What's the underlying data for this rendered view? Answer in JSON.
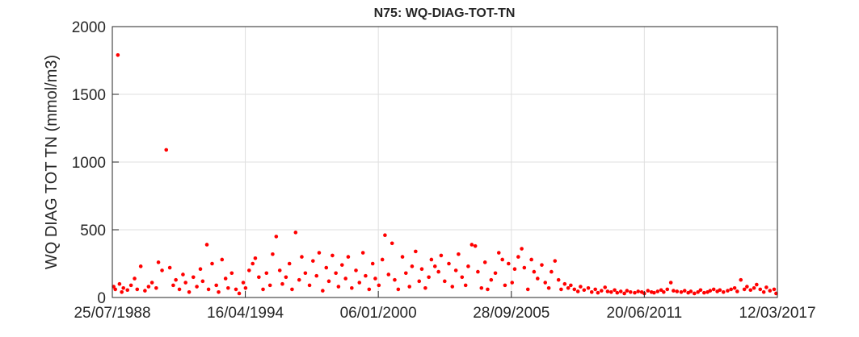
{
  "chart_data": {
    "type": "scatter",
    "title": "N75: WQ-DIAG-TOT-TN",
    "y_label": "WQ DIAG TOT TN (mmol/m3)",
    "xlim": [
      "25/07/1988",
      "12/03/2017"
    ],
    "xticks": [
      "25/07/1988",
      "16/04/1994",
      "06/01/2000",
      "28/09/2005",
      "20/06/2011",
      "12/03/2017"
    ],
    "ylim": [
      0,
      2000
    ],
    "yticks": [
      0,
      500,
      1000,
      1500,
      2000
    ],
    "grid": true,
    "series": [
      {
        "color": "#ff0000",
        "x": [
          "15/08/1988",
          "10/09/1988",
          "20/10/1988",
          "15/11/1988",
          "20/12/1988",
          "15/01/1989",
          "20/03/1989",
          "15/05/1989",
          "10/07/1989",
          "20/08/1989",
          "15/10/1989",
          "20/12/1989",
          "15/02/1990",
          "10/04/1990",
          "15/06/1990",
          "20/07/1990",
          "15/09/1990",
          "20/11/1990",
          "15/01/1991",
          "10/03/1991",
          "20/04/1991",
          "15/06/1991",
          "10/08/1991",
          "20/09/1991",
          "15/11/1991",
          "20/01/1992",
          "15/03/1992",
          "10/05/1992",
          "15/06/1992",
          "20/08/1992",
          "15/09/1992",
          "10/11/1992",
          "15/01/1993",
          "20/02/1993",
          "15/04/1993",
          "10/06/1993",
          "20/07/1993",
          "15/09/1993",
          "20/11/1993",
          "10/01/1994",
          "15/03/1994",
          "20/04/1994",
          "15/06/1994",
          "10/08/1994",
          "20/09/1994",
          "15/11/1994",
          "20/01/1995",
          "15/03/1995",
          "10/05/1995",
          "20/06/1995",
          "15/08/1995",
          "10/10/1995",
          "20/11/1995",
          "15/01/1996",
          "10/03/1996",
          "20/04/1996",
          "15/06/1996",
          "10/08/1996",
          "20/09/1996",
          "15/11/1996",
          "20/01/1997",
          "15/03/1997",
          "10/05/1997",
          "20/06/1997",
          "15/08/1997",
          "10/10/1997",
          "20/11/1997",
          "15/01/1998",
          "10/03/1998",
          "20/04/1998",
          "15/06/1998",
          "10/08/1998",
          "20/09/1998",
          "15/11/1998",
          "20/01/1999",
          "15/03/1999",
          "10/05/1999",
          "20/06/1999",
          "15/08/1999",
          "10/10/1999",
          "20/11/1999",
          "15/01/2000",
          "10/03/2000",
          "20/04/2000",
          "15/06/2000",
          "10/08/2000",
          "20/09/2000",
          "15/11/2000",
          "20/01/2001",
          "15/03/2001",
          "10/05/2001",
          "20/06/2001",
          "15/08/2001",
          "10/10/2001",
          "20/11/2001",
          "15/01/2002",
          "10/03/2002",
          "20/04/2002",
          "15/06/2002",
          "10/08/2002",
          "20/09/2002",
          "15/11/2002",
          "20/01/2003",
          "15/03/2003",
          "10/05/2003",
          "20/06/2003",
          "15/08/2003",
          "10/10/2003",
          "20/11/2003",
          "15/01/2004",
          "10/03/2004",
          "20/04/2004",
          "15/06/2004",
          "10/08/2004",
          "20/09/2004",
          "15/11/2004",
          "20/01/2005",
          "15/03/2005",
          "10/05/2005",
          "20/06/2005",
          "15/08/2005",
          "10/10/2005",
          "20/11/2005",
          "15/01/2006",
          "10/03/2006",
          "20/04/2006",
          "15/06/2006",
          "10/08/2006",
          "20/09/2006",
          "15/11/2006",
          "20/01/2007",
          "15/03/2007",
          "10/05/2007",
          "20/06/2007",
          "15/08/2007",
          "10/10/2007",
          "20/11/2007",
          "15/01/2008",
          "10/03/2008",
          "20/04/2008",
          "15/06/2008",
          "10/08/2008",
          "20/09/2008",
          "15/11/2008",
          "20/01/2009",
          "15/03/2009",
          "10/05/2009",
          "20/06/2009",
          "15/08/2009",
          "10/10/2009",
          "20/11/2009",
          "15/01/2010",
          "10/03/2010",
          "20/04/2010",
          "15/06/2010",
          "10/08/2010",
          "20/09/2010",
          "15/11/2010",
          "20/01/2011",
          "15/03/2011",
          "10/05/2011",
          "20/06/2011",
          "15/08/2011",
          "10/10/2011",
          "20/11/2011",
          "15/01/2012",
          "10/03/2012",
          "20/04/2012",
          "15/06/2012",
          "10/08/2012",
          "20/09/2012",
          "15/11/2012",
          "20/01/2013",
          "15/03/2013",
          "10/05/2013",
          "20/06/2013",
          "15/08/2013",
          "10/10/2013",
          "20/11/2013",
          "15/01/2014",
          "10/03/2014",
          "20/04/2014",
          "15/06/2014",
          "10/08/2014",
          "20/09/2014",
          "15/11/2014",
          "20/01/2015",
          "15/03/2015",
          "10/05/2015",
          "20/06/2015",
          "15/08/2015",
          "10/10/2015",
          "20/11/2015",
          "15/01/2016",
          "10/03/2016",
          "20/04/2016",
          "15/06/2016",
          "10/08/2016",
          "20/09/2016",
          "15/11/2016",
          "20/01/2017",
          "20/02/2017"
        ],
        "values": [
          80,
          60,
          1790,
          100,
          40,
          70,
          55,
          90,
          140,
          60,
          230,
          50,
          80,
          110,
          70,
          260,
          200,
          1090,
          220,
          90,
          130,
          60,
          170,
          110,
          40,
          150,
          80,
          210,
          120,
          390,
          60,
          250,
          90,
          40,
          280,
          140,
          70,
          180,
          60,
          30,
          110,
          70,
          200,
          250,
          290,
          150,
          60,
          180,
          90,
          320,
          450,
          200,
          100,
          150,
          250,
          60,
          480,
          130,
          300,
          180,
          90,
          270,
          160,
          330,
          50,
          220,
          120,
          310,
          180,
          80,
          240,
          140,
          300,
          70,
          200,
          110,
          330,
          160,
          60,
          250,
          140,
          90,
          280,
          460,
          170,
          400,
          130,
          60,
          300,
          180,
          80,
          230,
          340,
          120,
          210,
          70,
          150,
          280,
          230,
          190,
          310,
          120,
          250,
          80,
          200,
          320,
          150,
          90,
          230,
          390,
          380,
          190,
          70,
          260,
          60,
          130,
          180,
          330,
          280,
          90,
          250,
          110,
          210,
          300,
          360,
          220,
          60,
          280,
          190,
          140,
          240,
          110,
          70,
          190,
          270,
          130,
          60,
          100,
          70,
          90,
          60,
          45,
          80,
          55,
          70,
          40,
          60,
          35,
          50,
          75,
          45,
          40,
          55,
          35,
          45,
          30,
          50,
          40,
          35,
          45,
          40,
          30,
          50,
          40,
          35,
          45,
          55,
          40,
          60,
          110,
          50,
          45,
          40,
          50,
          35,
          45,
          30,
          40,
          55,
          35,
          40,
          50,
          60,
          45,
          55,
          40,
          50,
          60,
          70,
          45,
          130,
          60,
          80,
          55,
          70,
          95,
          60,
          40,
          75,
          50,
          60,
          30
        ]
      }
    ]
  }
}
